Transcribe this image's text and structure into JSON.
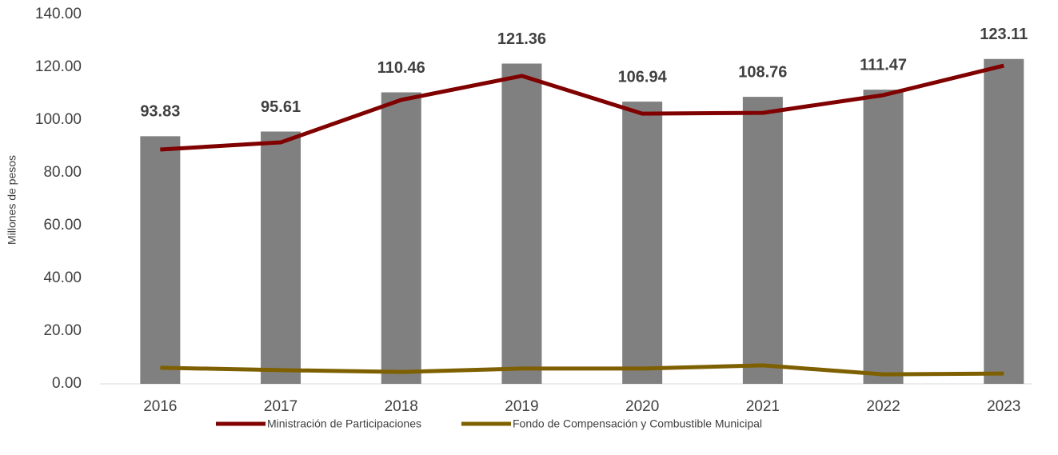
{
  "chart_data": {
    "type": "bar",
    "y_label": "Millones de pesos",
    "categories": [
      "2016",
      "2017",
      "2018",
      "2019",
      "2020",
      "2021",
      "2022",
      "2023"
    ],
    "series": [
      {
        "type": "bar",
        "color": "#808080",
        "values": [
          93.83,
          95.61,
          110.46,
          121.36,
          106.94,
          108.76,
          111.47,
          123.11
        ]
      },
      {
        "type": "line",
        "name": "Ministración de Participaciones",
        "color": "#800000",
        "values": [
          88.8,
          91.5,
          107.6,
          116.7,
          102.4,
          102.7,
          109.4,
          120.6
        ]
      },
      {
        "type": "line",
        "name": "Fondo de Compensación y Combustible Municipal",
        "color": "#7f6000",
        "values": [
          6.1,
          5.2,
          4.5,
          5.8,
          5.8,
          7.0,
          3.6,
          3.9
        ]
      }
    ],
    "ylim": [
      0,
      140
    ],
    "yticks": [
      {
        "value": 0,
        "label": "0.00"
      },
      {
        "value": 20,
        "label": "20.00"
      },
      {
        "value": 40,
        "label": "40.00"
      },
      {
        "value": 60,
        "label": "60.00"
      },
      {
        "value": 80,
        "label": "80.00"
      },
      {
        "value": 100,
        "label": "100.00"
      },
      {
        "value": 120,
        "label": "120.00"
      },
      {
        "value": 140,
        "label": "140.00"
      }
    ],
    "legend": "bottom"
  }
}
